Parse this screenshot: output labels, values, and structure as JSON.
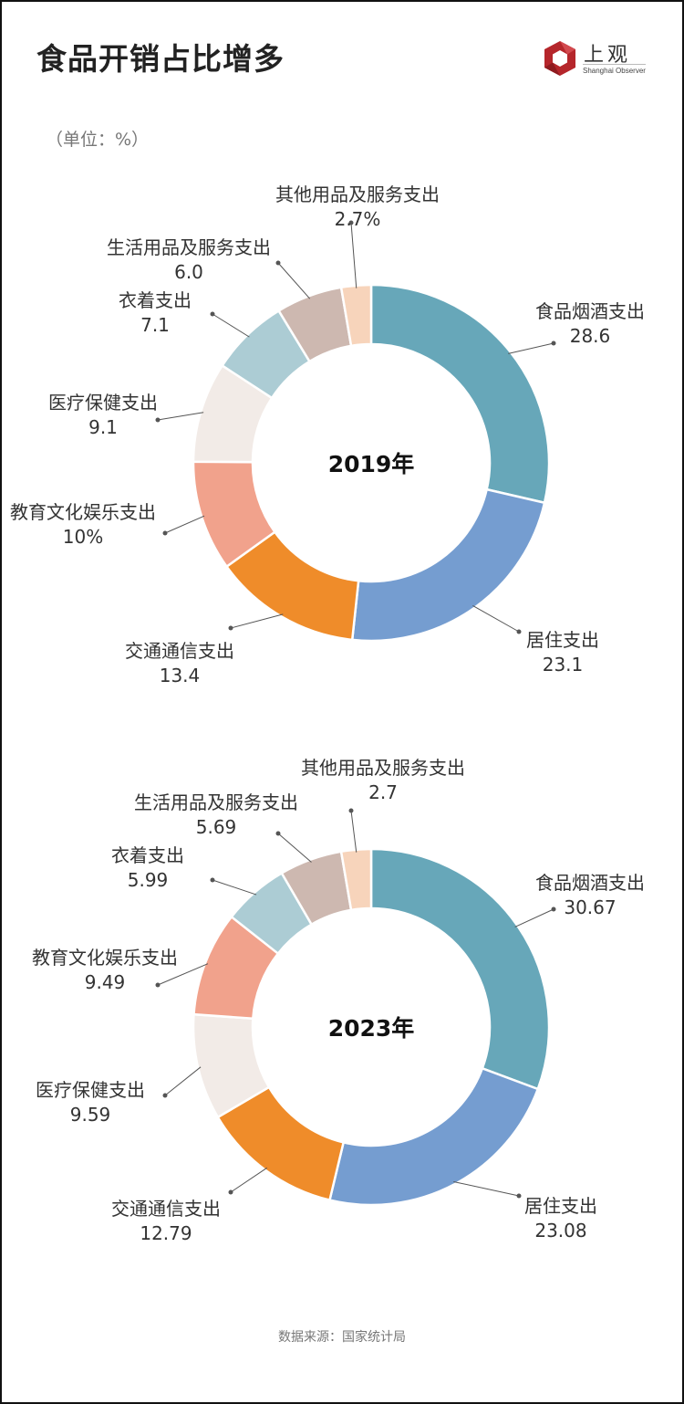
{
  "header": {
    "title": "食品开销占比增多",
    "unit": "（单位：%）",
    "logo": {
      "name": "上观",
      "sub": "Shanghai Observer",
      "color": "#b5262b"
    }
  },
  "footer": {
    "source": "数据来源：国家统计局"
  },
  "colors": {
    "食品烟酒支出": "#67a7b9",
    "居住支出": "#759dd0",
    "交通通信支出": "#ef8c2a",
    "教育文化娱乐支出": "#f1a28c",
    "医疗保健支出": "#f2ebe7",
    "衣着支出": "#acccd4",
    "生活用品及服务支出": "#cdb8b0",
    "其他用品及服务支出": "#f7d4bb"
  },
  "chart_data": [
    {
      "type": "pie",
      "subtype": "donut",
      "title": "2019年",
      "unit": "%",
      "categories": [
        "食品烟酒支出",
        "居住支出",
        "交通通信支出",
        "教育文化娱乐支出",
        "医疗保健支出",
        "衣着支出",
        "生活用品及服务支出",
        "其他用品及服务支出"
      ],
      "values": [
        28.6,
        23.1,
        13.4,
        10,
        9.1,
        7.1,
        6.0,
        2.7
      ],
      "value_labels": [
        "28.6",
        "23.1",
        "13.4",
        "10%",
        "9.1",
        "7.1",
        "6.0",
        "2.7%"
      ],
      "start_angle": "12 o'clock, clockwise"
    },
    {
      "type": "pie",
      "subtype": "donut",
      "title": "2023年",
      "unit": "%",
      "categories": [
        "食品烟酒支出",
        "居住支出",
        "交通通信支出",
        "医疗保健支出",
        "教育文化娱乐支出",
        "衣着支出",
        "生活用品及服务支出",
        "其他用品及服务支出"
      ],
      "values": [
        30.67,
        23.08,
        12.79,
        9.59,
        9.49,
        5.99,
        5.69,
        2.7
      ],
      "value_labels": [
        "30.67",
        "23.08",
        "12.79",
        "9.59",
        "9.49",
        "5.99",
        "5.69",
        "2.7"
      ],
      "start_angle": "12 o'clock, clockwise"
    }
  ]
}
